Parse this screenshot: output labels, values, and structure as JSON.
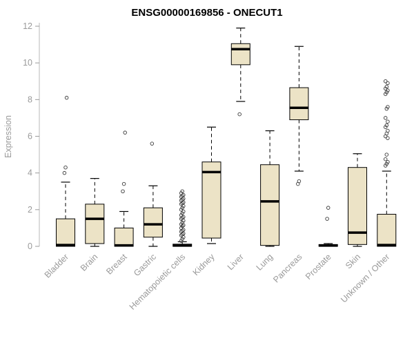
{
  "page": {
    "background": "#ffffff"
  },
  "chart_data": {
    "type": "boxplot",
    "title": "ENSG00000169856 - ONECUT1",
    "xlabel": "",
    "ylabel": "Expression",
    "ylim": [
      0,
      12
    ],
    "yticks": [
      0,
      2,
      4,
      6,
      8,
      10,
      12
    ],
    "grid": false,
    "x_tick_rotation": 45,
    "title_color": "#000000",
    "axis_text_color": "#9a9a9a",
    "box_fill": "#ece3c6",
    "box_stroke": "#000000",
    "median_color": "#000000",
    "whisker_color": "#000000",
    "outlier_stroke": "#3a3a3a",
    "categories": [
      "Bladder",
      "Brain",
      "Breast",
      "Gastric",
      "Hematopoietic cells",
      "Kidney",
      "Liver",
      "Lung",
      "Pancreas",
      "Prostate",
      "Skin",
      "Unknown / Other"
    ],
    "series": [
      {
        "label": "Bladder",
        "whisker_low": 0,
        "q1": 0,
        "median": 0.07,
        "q3": 1.5,
        "whisker_high": 3.5,
        "outliers": [
          4.0,
          4.3,
          8.1
        ]
      },
      {
        "label": "Brain",
        "whisker_low": 0,
        "q1": 0.15,
        "median": 1.5,
        "q3": 2.3,
        "whisker_high": 3.7,
        "outliers": []
      },
      {
        "label": "Breast",
        "whisker_low": 0,
        "q1": 0,
        "median": 0.05,
        "q3": 1.0,
        "whisker_high": 1.9,
        "outliers": [
          3.0,
          3.4,
          6.2
        ]
      },
      {
        "label": "Gastric",
        "whisker_low": 0,
        "q1": 0.5,
        "median": 1.2,
        "q3": 2.1,
        "whisker_high": 3.3,
        "outliers": [
          5.6
        ]
      },
      {
        "label": "Hematopoietic cells",
        "whisker_low": 0,
        "q1": 0,
        "median": 0.04,
        "q3": 0.12,
        "whisker_high": 0.25,
        "outliers": [
          0.3,
          0.4,
          0.5,
          0.6,
          0.65,
          0.7,
          0.8,
          0.85,
          0.9,
          1.0,
          1.1,
          1.15,
          1.2,
          1.3,
          1.4,
          1.5,
          1.55,
          1.6,
          1.7,
          1.8,
          1.9,
          2.0,
          2.1,
          2.2,
          2.3,
          2.35,
          2.4,
          2.5,
          2.55,
          2.6,
          2.7,
          2.75,
          2.8,
          2.9,
          3.0
        ]
      },
      {
        "label": "Kidney",
        "whisker_low": 0.15,
        "q1": 0.45,
        "median": 4.05,
        "q3": 4.6,
        "whisker_high": 6.5,
        "outliers": []
      },
      {
        "label": "Liver",
        "whisker_low": 7.9,
        "q1": 9.9,
        "median": 10.75,
        "q3": 11.05,
        "whisker_high": 11.9,
        "outliers": [
          7.2
        ]
      },
      {
        "label": "Lung",
        "whisker_low": 0,
        "q1": 0.05,
        "median": 2.45,
        "q3": 4.45,
        "whisker_high": 6.3,
        "outliers": []
      },
      {
        "label": "Pancreas",
        "whisker_low": 4.1,
        "q1": 6.9,
        "median": 7.55,
        "q3": 8.65,
        "whisker_high": 10.9,
        "outliers": [
          3.4,
          3.55
        ]
      },
      {
        "label": "Prostate",
        "whisker_low": 0,
        "q1": 0,
        "median": 0.04,
        "q3": 0.1,
        "whisker_high": 0.15,
        "outliers": [
          1.5,
          2.1
        ]
      },
      {
        "label": "Skin",
        "whisker_low": 0,
        "q1": 0.1,
        "median": 0.75,
        "q3": 4.3,
        "whisker_high": 5.05,
        "outliers": []
      },
      {
        "label": "Unknown / Other",
        "whisker_low": 0,
        "q1": 0,
        "median": 0.07,
        "q3": 1.75,
        "whisker_high": 4.1,
        "outliers": [
          4.4,
          4.5,
          4.6,
          4.75,
          5.0,
          5.9,
          6.0,
          6.15,
          6.3,
          6.5,
          6.6,
          6.8,
          7.0,
          7.5,
          7.6,
          8.3,
          8.4,
          8.5,
          8.6,
          8.7,
          8.9,
          9.0
        ]
      }
    ]
  }
}
